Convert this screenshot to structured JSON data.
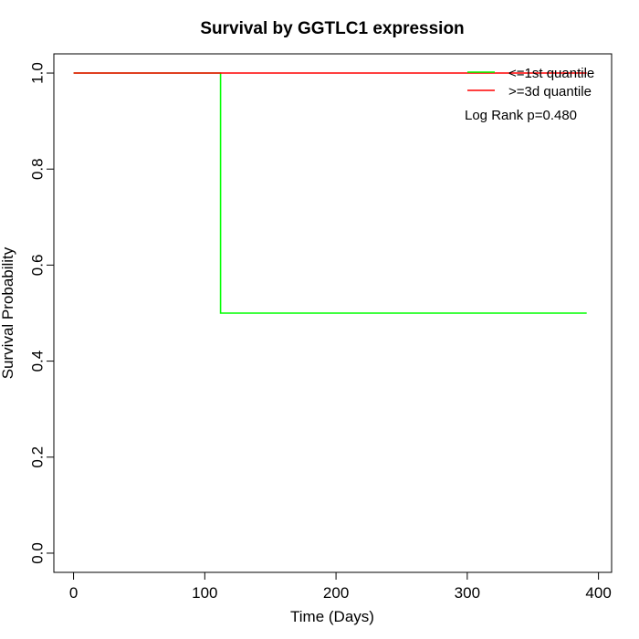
{
  "chart_data": {
    "type": "line",
    "title": "Survival by GGTLC1 expression",
    "xlabel": "Time (Days)",
    "ylabel": "Survival Probability",
    "xlim": [
      -15,
      410
    ],
    "ylim": [
      -0.04,
      1.04
    ],
    "xticks": [
      0,
      100,
      200,
      300,
      400
    ],
    "yticks": [
      0.0,
      0.2,
      0.4,
      0.6,
      0.8,
      1.0
    ],
    "xtick_labels": [
      "0",
      "100",
      "200",
      "300",
      "400"
    ],
    "ytick_labels": [
      "0.0",
      "0.2",
      "0.4",
      "0.6",
      "0.8",
      "1.0"
    ],
    "grid": false,
    "legend_position": "top-right",
    "series": [
      {
        "name": "<=1st quantile",
        "color": "#00ff00",
        "step": true,
        "x": [
          0,
          112,
          112,
          391
        ],
        "y": [
          1.0,
          1.0,
          0.5,
          0.5
        ]
      },
      {
        "name": ">=3d quantile",
        "color": "#ff0000",
        "step": true,
        "x": [
          0,
          391
        ],
        "y": [
          1.0,
          1.0
        ]
      }
    ],
    "annotation": "Log Rank p=0.480"
  }
}
